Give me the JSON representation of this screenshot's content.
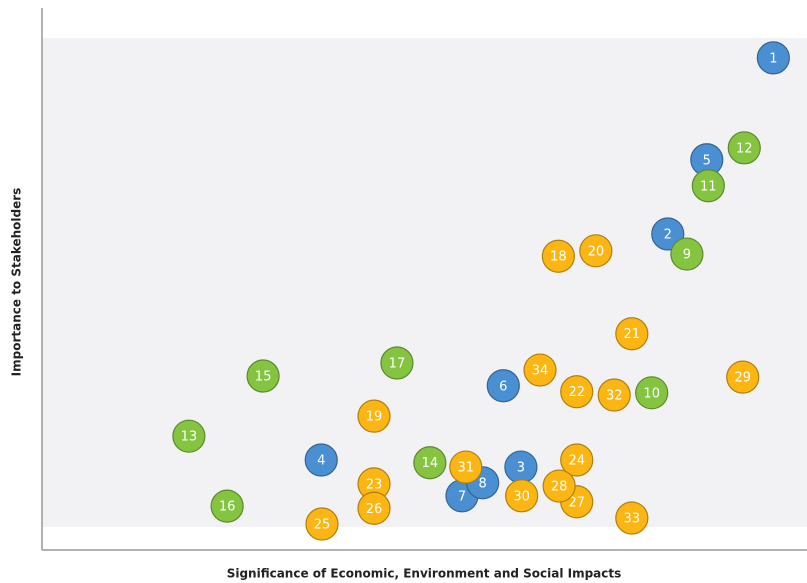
{
  "chart_data": {
    "type": "scatter",
    "x_label": "Significance of Economic, Environment and Social Impacts",
    "y_label": "Importance to Stakeholders",
    "xlim": [
      0,
      100
    ],
    "ylim": [
      0,
      100
    ],
    "labels": [
      "1",
      "2",
      "3",
      "4",
      "5",
      "6",
      "7",
      "8",
      "9",
      "10",
      "11",
      "12",
      "13",
      "14",
      "15",
      "16",
      "17",
      "18",
      "19",
      "20",
      "21",
      "22",
      "23",
      "24",
      "25",
      "26",
      "27",
      "28",
      "29",
      "30",
      "31",
      "32",
      "33",
      "34"
    ],
    "x": [
      95.6,
      81.8,
      62.6,
      36.5,
      86.9,
      60.3,
      54.9,
      57.6,
      84.3,
      79.7,
      87.1,
      91.8,
      19.2,
      50.7,
      28.9,
      24.2,
      46.4,
      67.5,
      43.4,
      72.4,
      77.1,
      69.9,
      43.4,
      69.9,
      36.6,
      43.4,
      69.9,
      67.6,
      91.6,
      62.7,
      55.4,
      74.8,
      77.1,
      65.1
    ],
    "y": [
      90.8,
      58.3,
      15.3,
      16.6,
      72.0,
      30.3,
      10.0,
      12.4,
      54.6,
      29.0,
      67.2,
      74.2,
      21.0,
      16.1,
      32.1,
      8.1,
      34.5,
      54.2,
      24.7,
      55.2,
      39.9,
      29.2,
      12.2,
      16.6,
      4.8,
      7.7,
      8.9,
      11.8,
      31.9,
      10.0,
      15.3,
      28.6,
      5.9,
      33.2
    ],
    "colors": [
      "#4a8fd1",
      "#4a8fd1",
      "#4a8fd1",
      "#4a8fd1",
      "#4a8fd1",
      "#4a8fd1",
      "#4a8fd1",
      "#4a8fd1",
      "#84c441",
      "#84c441",
      "#84c441",
      "#84c441",
      "#84c441",
      "#84c441",
      "#84c441",
      "#84c441",
      "#84c441",
      "#fbb614",
      "#fbb614",
      "#fbb614",
      "#fbb614",
      "#fbb614",
      "#fbb614",
      "#fbb614",
      "#fbb614",
      "#fbb614",
      "#fbb614",
      "#fbb614",
      "#fbb614",
      "#fbb614",
      "#fbb614",
      "#fbb614",
      "#fbb614",
      "#fbb614"
    ]
  }
}
